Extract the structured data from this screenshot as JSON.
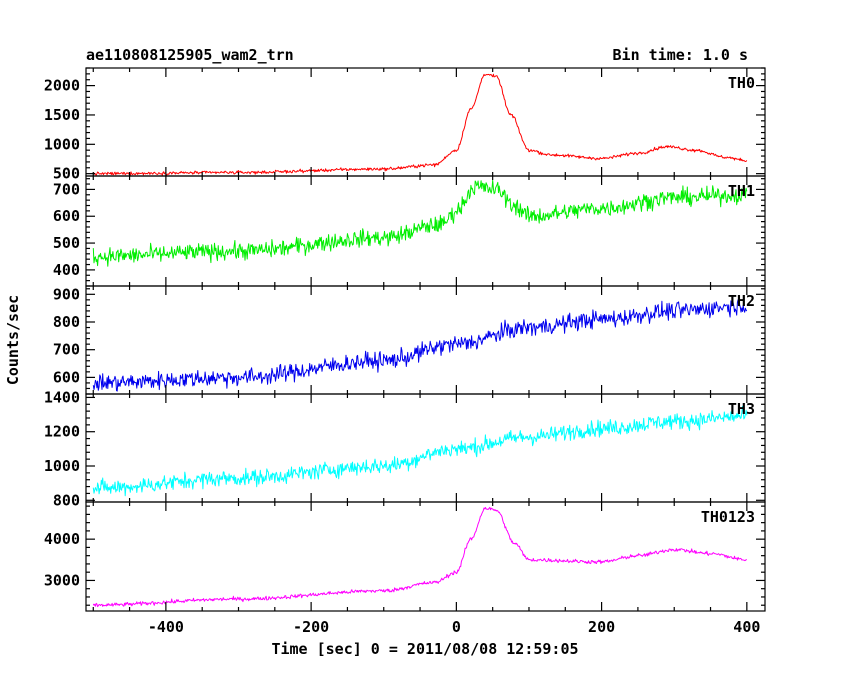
{
  "chart_data": {
    "type": "line",
    "title": "ae110808125905_wam2_trn",
    "subtitle": "Bin time: 1.0 s",
    "xlabel": "Time [sec] 0 = 2011/08/08 12:59:05",
    "ylabel": "Counts/sec",
    "xlim": [
      -510,
      425
    ],
    "xticks": [
      -400,
      -200,
      0,
      200,
      400
    ],
    "grid": false,
    "panels": [
      {
        "name": "TH0",
        "color": "#ff0000",
        "ylim": [
          460,
          2300
        ],
        "yticks": [
          500,
          1000,
          1500,
          2000
        ],
        "noise": 25,
        "knots": [
          [
            -500,
            500
          ],
          [
            -300,
            520
          ],
          [
            -100,
            580
          ],
          [
            -30,
            650
          ],
          [
            0,
            900
          ],
          [
            20,
            1600
          ],
          [
            40,
            2200
          ],
          [
            55,
            2150
          ],
          [
            75,
            1500
          ],
          [
            100,
            900
          ],
          [
            130,
            820
          ],
          [
            200,
            760
          ],
          [
            250,
            850
          ],
          [
            290,
            960
          ],
          [
            330,
            900
          ],
          [
            370,
            780
          ],
          [
            400,
            720
          ]
        ]
      },
      {
        "name": "TH1",
        "color": "#00ee00",
        "ylim": [
          340,
          750
        ],
        "yticks": [
          400,
          500,
          600,
          700
        ],
        "noise": 30,
        "knots": [
          [
            -500,
            450
          ],
          [
            -300,
            470
          ],
          [
            -100,
            520
          ],
          [
            -20,
            570
          ],
          [
            0,
            620
          ],
          [
            25,
            710
          ],
          [
            55,
            700
          ],
          [
            80,
            640
          ],
          [
            100,
            600
          ],
          [
            200,
            630
          ],
          [
            300,
            670
          ],
          [
            400,
            680
          ]
        ]
      },
      {
        "name": "TH2",
        "color": "#0000ee",
        "ylim": [
          540,
          930
        ],
        "yticks": [
          600,
          700,
          800,
          900
        ],
        "noise": 30,
        "knots": [
          [
            -500,
            580
          ],
          [
            -300,
            600
          ],
          [
            -100,
            660
          ],
          [
            0,
            720
          ],
          [
            100,
            780
          ],
          [
            200,
            810
          ],
          [
            300,
            840
          ],
          [
            400,
            860
          ]
        ]
      },
      {
        "name": "TH3",
        "color": "#00ffff",
        "ylim": [
          790,
          1420
        ],
        "yticks": [
          800,
          1000,
          1200,
          1400
        ],
        "noise": 45,
        "knots": [
          [
            -500,
            870
          ],
          [
            -300,
            930
          ],
          [
            -100,
            1000
          ],
          [
            0,
            1100
          ],
          [
            100,
            1170
          ],
          [
            200,
            1220
          ],
          [
            300,
            1260
          ],
          [
            400,
            1290
          ]
        ]
      },
      {
        "name": "TH0123",
        "color": "#ff00ff",
        "ylim": [
          2260,
          4900
        ],
        "yticks": [
          3000,
          4000
        ],
        "noise": 45,
        "knots": [
          [
            -500,
            2400
          ],
          [
            -300,
            2550
          ],
          [
            -100,
            2750
          ],
          [
            -30,
            2950
          ],
          [
            0,
            3200
          ],
          [
            20,
            4000
          ],
          [
            40,
            4750
          ],
          [
            55,
            4700
          ],
          [
            80,
            3900
          ],
          [
            100,
            3500
          ],
          [
            200,
            3450
          ],
          [
            250,
            3600
          ],
          [
            300,
            3750
          ],
          [
            350,
            3650
          ],
          [
            400,
            3500
          ]
        ]
      }
    ]
  }
}
